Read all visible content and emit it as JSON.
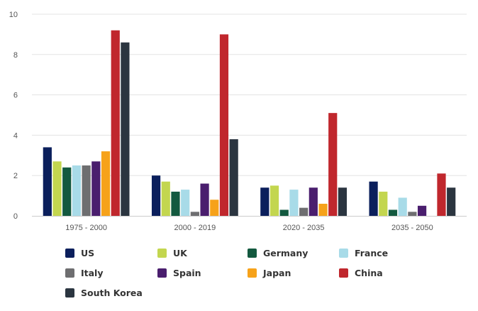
{
  "chart_data": {
    "type": "bar",
    "categories": [
      "1975 - 2000",
      "2000 - 2019",
      "2020 - 2035",
      "2035 - 2050"
    ],
    "series": [
      {
        "name": "US",
        "color": "#0b1f5c",
        "values": [
          3.4,
          2.0,
          1.4,
          1.7
        ]
      },
      {
        "name": "UK",
        "color": "#c3d64f",
        "values": [
          2.7,
          1.7,
          1.5,
          1.2
        ]
      },
      {
        "name": "Germany",
        "color": "#13593f",
        "values": [
          2.4,
          1.2,
          0.3,
          0.3
        ]
      },
      {
        "name": "France",
        "color": "#a8dbe8",
        "values": [
          2.5,
          1.3,
          1.3,
          0.9
        ]
      },
      {
        "name": "Italy",
        "color": "#6e6e70",
        "values": [
          2.5,
          0.2,
          0.4,
          0.2
        ]
      },
      {
        "name": "Spain",
        "color": "#4a1e6e",
        "values": [
          2.7,
          1.6,
          1.4,
          0.5
        ]
      },
      {
        "name": "Japan",
        "color": "#f6a21a",
        "values": [
          3.2,
          0.8,
          0.6,
          0.0
        ]
      },
      {
        "name": "China",
        "color": "#c0272d",
        "values": [
          9.2,
          9.0,
          5.1,
          2.1
        ]
      },
      {
        "name": "South Korea",
        "color": "#2b3540",
        "values": [
          8.6,
          3.8,
          1.4,
          1.4
        ]
      }
    ],
    "ylim": [
      0,
      10
    ],
    "yticks": [
      0,
      2,
      4,
      6,
      8,
      10
    ],
    "grid": true,
    "legend_position": "bottom"
  }
}
